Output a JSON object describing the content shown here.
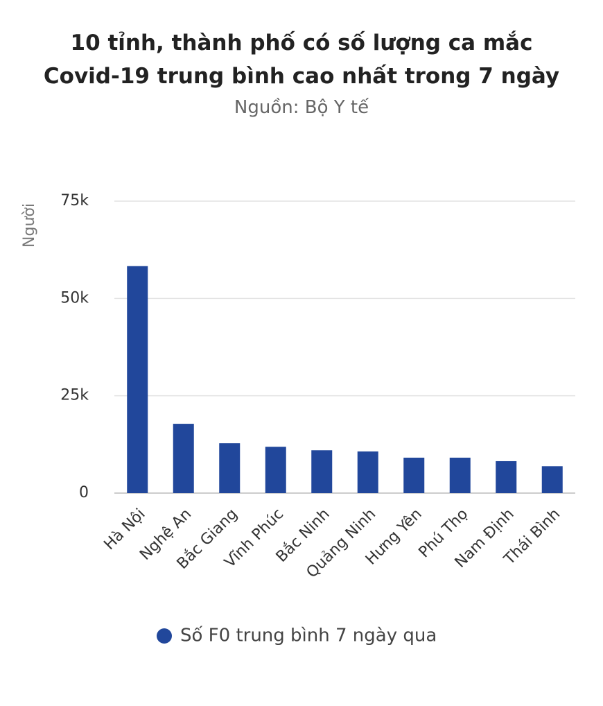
{
  "chart_data": {
    "type": "bar",
    "title": "10 tỉnh, thành phố có số lượng ca mắc Covid-19 trung bình cao nhất trong 7 ngày",
    "subtitle": "Nguồn: Bộ Y tế",
    "y_label": "Người",
    "categories": [
      "Hà Nội",
      "Nghệ An",
      "Bắc Giang",
      "Vĩnh Phúc",
      "Bắc Ninh",
      "Quảng Ninh",
      "Hưng Yên",
      "Phú Thọ",
      "Nam Định",
      "Thái Bình"
    ],
    "series": [
      {
        "name": "Số F0 trung bình 7 ngày qua",
        "color": "#21479b",
        "values": [
          58300,
          17800,
          12800,
          11900,
          11000,
          10700,
          9100,
          9100,
          8200,
          6900
        ]
      }
    ],
    "ylim": [
      0,
      75000
    ],
    "yticks": [
      0,
      {
        "value": 25000,
        "label": "25k"
      },
      {
        "value": 50000,
        "label": "50k"
      },
      {
        "value": 75000,
        "label": "75k"
      }
    ],
    "grid": true
  }
}
